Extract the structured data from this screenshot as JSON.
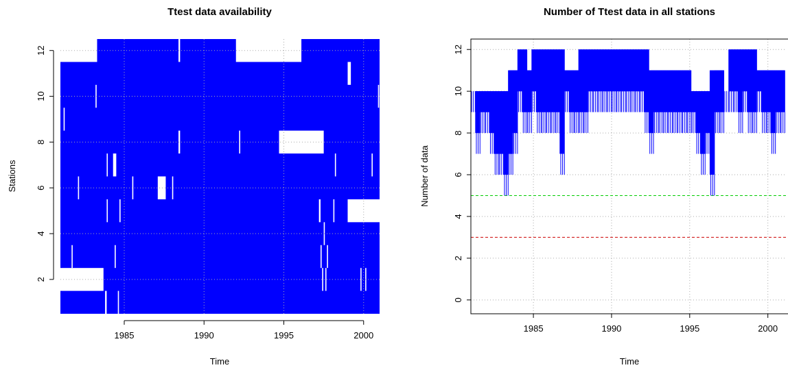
{
  "chart_data": [
    {
      "type": "heatmap",
      "title": "Ttest data availability",
      "xlabel": "Time",
      "ylabel": "Stations",
      "xlim": [
        1981.0,
        2001.0
      ],
      "ylim": [
        0.5,
        12.5
      ],
      "x_ticks": [
        1985,
        1990,
        1995,
        2000
      ],
      "y_ticks": [
        2,
        4,
        6,
        8,
        10,
        12
      ],
      "grid": true,
      "present_color": "#0000ff",
      "missing_color": "#ffffff",
      "stations": [
        1,
        2,
        3,
        4,
        5,
        6,
        7,
        8,
        9,
        10,
        11,
        12
      ],
      "missing": [
        {
          "station": 12,
          "from": 1981.0,
          "to": 1983.3
        },
        {
          "station": 12,
          "from": 1988.4,
          "to": 1988.5
        },
        {
          "station": 12,
          "from": 1992.0,
          "to": 1996.1
        },
        {
          "station": 11,
          "from": 1999.0,
          "to": 1999.2
        },
        {
          "station": 10,
          "from": 1983.2,
          "to": 1983.25
        },
        {
          "station": 10,
          "from": 2000.9,
          "to": 2000.95
        },
        {
          "station": 9,
          "from": 1981.2,
          "to": 1981.25
        },
        {
          "station": 8,
          "from": 1988.4,
          "to": 1988.5
        },
        {
          "station": 8,
          "from": 1992.2,
          "to": 1992.25
        },
        {
          "station": 8,
          "from": 1994.7,
          "to": 1997.5
        },
        {
          "station": 7,
          "from": 1983.9,
          "to": 1983.95
        },
        {
          "station": 7,
          "from": 1984.3,
          "to": 1984.5
        },
        {
          "station": 7,
          "from": 1998.2,
          "to": 1998.25
        },
        {
          "station": 7,
          "from": 2000.5,
          "to": 2000.55
        },
        {
          "station": 6,
          "from": 1982.1,
          "to": 1982.15
        },
        {
          "station": 6,
          "from": 1985.5,
          "to": 1985.55
        },
        {
          "station": 6,
          "from": 1987.1,
          "to": 1987.6
        },
        {
          "station": 6,
          "from": 1988.0,
          "to": 1988.05
        },
        {
          "station": 5,
          "from": 1983.9,
          "to": 1983.95
        },
        {
          "station": 5,
          "from": 1984.7,
          "to": 1984.75
        },
        {
          "station": 5,
          "from": 1997.2,
          "to": 1997.3
        },
        {
          "station": 5,
          "from": 1998.1,
          "to": 1998.15
        },
        {
          "station": 5,
          "from": 1999.0,
          "to": 2001.0
        },
        {
          "station": 4,
          "from": 1997.5,
          "to": 1997.55
        },
        {
          "station": 3,
          "from": 1981.7,
          "to": 1981.75
        },
        {
          "station": 3,
          "from": 1984.4,
          "to": 1984.45
        },
        {
          "station": 3,
          "from": 1997.7,
          "to": 1997.75
        },
        {
          "station": 3,
          "from": 1997.3,
          "to": 1997.35
        },
        {
          "station": 2,
          "from": 1981.0,
          "to": 1983.7
        },
        {
          "station": 2,
          "from": 1997.4,
          "to": 1997.45
        },
        {
          "station": 2,
          "from": 1997.6,
          "to": 1997.65
        },
        {
          "station": 2,
          "from": 1999.8,
          "to": 1999.85
        },
        {
          "station": 2,
          "from": 2000.1,
          "to": 2000.15
        },
        {
          "station": 1,
          "from": 1983.8,
          "to": 1983.9
        },
        {
          "station": 1,
          "from": 1984.6,
          "to": 1984.65
        }
      ]
    },
    {
      "type": "line",
      "title": "Number of Ttest data in all stations",
      "xlabel": "Time",
      "ylabel": "Number of data",
      "xlim": [
        1981.0,
        2001.2
      ],
      "ylim": [
        0,
        12.5
      ],
      "x_ticks": [
        1985,
        1990,
        1995,
        2000
      ],
      "y_ticks": [
        0,
        2,
        4,
        6,
        8,
        10,
        12
      ],
      "grid": true,
      "line_color": "#0000ff",
      "x": [
        1981.0,
        1981.3,
        1981.6,
        1981.9,
        1982.2,
        1982.5,
        1982.8,
        1983.1,
        1983.4,
        1983.7,
        1984.0,
        1984.3,
        1984.6,
        1984.9,
        1985.2,
        1985.5,
        1985.8,
        1986.1,
        1986.4,
        1986.7,
        1987.0,
        1987.3,
        1987.6,
        1987.9,
        1988.2,
        1988.5,
        1988.8,
        1989.1,
        1989.4,
        1989.7,
        1990.0,
        1990.3,
        1990.6,
        1990.9,
        1991.2,
        1991.5,
        1991.8,
        1992.1,
        1992.4,
        1992.7,
        1993.0,
        1993.3,
        1993.6,
        1993.9,
        1994.2,
        1994.5,
        1994.8,
        1995.1,
        1995.4,
        1995.7,
        1996.0,
        1996.3,
        1996.6,
        1996.9,
        1997.2,
        1997.5,
        1997.8,
        1998.1,
        1998.4,
        1998.7,
        1999.0,
        1999.3,
        1999.6,
        1999.9,
        2000.2,
        2000.5,
        2000.8,
        2001.1
      ],
      "y_high": [
        10,
        10,
        10,
        10,
        10,
        10,
        10,
        10,
        11,
        11,
        12,
        12,
        11,
        12,
        12,
        12,
        12,
        12,
        12,
        12,
        11,
        11,
        11,
        12,
        12,
        12,
        12,
        12,
        12,
        12,
        12,
        12,
        12,
        12,
        12,
        12,
        12,
        12,
        11,
        11,
        11,
        11,
        11,
        11,
        11,
        11,
        11,
        10,
        10,
        10,
        10,
        11,
        11,
        11,
        10,
        12,
        12,
        12,
        12,
        12,
        12,
        11,
        11,
        11,
        11,
        11,
        11,
        11
      ],
      "y_low": [
        9,
        7,
        8,
        8,
        7,
        6,
        6,
        5,
        6,
        7,
        9,
        8,
        8,
        9,
        8,
        8,
        8,
        8,
        8,
        6,
        9,
        8,
        8,
        8,
        8,
        9,
        9,
        9,
        9,
        9,
        9,
        9,
        9,
        9,
        9,
        9,
        9,
        8,
        7,
        8,
        8,
        8,
        8,
        8,
        8,
        8,
        8,
        8,
        7,
        6,
        7,
        5,
        8,
        8,
        9,
        9,
        9,
        8,
        9,
        8,
        8,
        9,
        8,
        8,
        7,
        8,
        8,
        8
      ],
      "reference_lines": [
        {
          "y": 5,
          "color": "#00cc00",
          "style": "dashed"
        },
        {
          "y": 3,
          "color": "#cc0000",
          "style": "dashed"
        }
      ]
    }
  ]
}
